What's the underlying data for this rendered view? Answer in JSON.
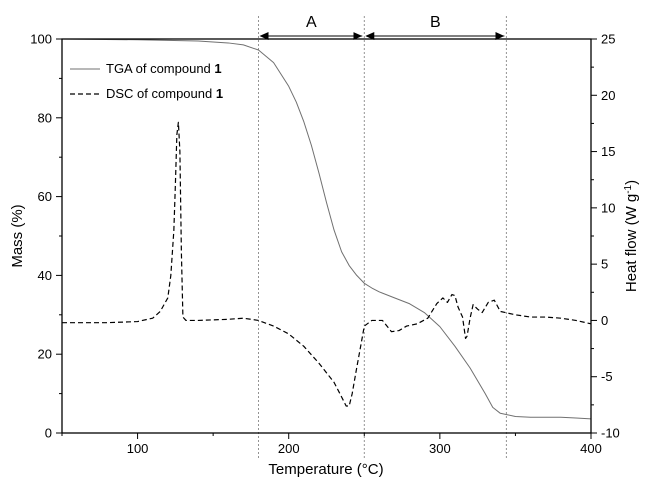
{
  "chart_data": {
    "type": "line",
    "xlabel": "Temperature (°C)",
    "ylabel": "Mass (%)",
    "y2label": "Heat flow (W g-1)",
    "xlim": [
      50,
      400
    ],
    "ylim": [
      0,
      100
    ],
    "y2lim": [
      -10,
      25
    ],
    "xticks": [
      "100",
      "200",
      "300",
      "400"
    ],
    "yticks": [
      "0",
      "20",
      "40",
      "60",
      "80",
      "100"
    ],
    "y2ticks": [
      "-10",
      "-5",
      "0",
      "5",
      "10",
      "15",
      "20",
      "25"
    ],
    "grid": false,
    "legend_position": "top-left",
    "regions": [
      {
        "label": "A",
        "x_start": 180,
        "x_end": 250
      },
      {
        "label": "B",
        "x_start": 250,
        "x_end": 344
      }
    ],
    "series": [
      {
        "name": "TGA of compound 1",
        "axis": "left",
        "style": "solid",
        "color": "#707070",
        "x": [
          50,
          100,
          140,
          160,
          170,
          180,
          190,
          200,
          205,
          210,
          215,
          220,
          225,
          230,
          235,
          240,
          245,
          250,
          255,
          260,
          270,
          280,
          290,
          300,
          310,
          320,
          330,
          335,
          340,
          350,
          360,
          370,
          380,
          390,
          400
        ],
        "y": [
          100,
          99.8,
          99.5,
          99.0,
          98.5,
          97.2,
          94.0,
          88.0,
          84.0,
          79.0,
          73.0,
          66.0,
          58.5,
          51.5,
          46.0,
          42.5,
          40.0,
          38.0,
          36.8,
          35.8,
          34.3,
          32.8,
          30.5,
          27.0,
          22.0,
          16.5,
          10.0,
          6.5,
          5.0,
          4.2,
          4.0,
          4.0,
          4.0,
          3.8,
          3.6
        ]
      },
      {
        "name": "DSC of compound 1",
        "axis": "right",
        "style": "dashed",
        "color": "#000000",
        "x": [
          50,
          80,
          100,
          110,
          115,
          120,
          122,
          124,
          125,
          126,
          127,
          128,
          129,
          130,
          132,
          140,
          160,
          170,
          180,
          190,
          200,
          210,
          220,
          230,
          235,
          238,
          240,
          242,
          245,
          248,
          250,
          255,
          262,
          268,
          273,
          278,
          285,
          292,
          298,
          302,
          305,
          308,
          310,
          312,
          315,
          317,
          318,
          320,
          322,
          325,
          328,
          332,
          336,
          340,
          350,
          360,
          370,
          380,
          390,
          400
        ],
        "y": [
          -0.2,
          -0.2,
          -0.1,
          0.2,
          0.8,
          2.0,
          4.0,
          8.0,
          12.0,
          16.5,
          17.6,
          15.0,
          6.0,
          0.3,
          0.0,
          0.0,
          0.1,
          0.2,
          0.0,
          -0.5,
          -1.2,
          -2.3,
          -3.8,
          -5.5,
          -6.8,
          -7.6,
          -7.6,
          -6.5,
          -4.2,
          -2.0,
          -0.5,
          0.0,
          0.0,
          -1.0,
          -0.9,
          -0.5,
          -0.3,
          0.2,
          1.5,
          2.0,
          1.6,
          2.3,
          2.2,
          1.2,
          0.3,
          -1.6,
          -1.4,
          0.2,
          1.4,
          1.0,
          0.7,
          1.6,
          1.8,
          0.8,
          0.5,
          0.3,
          0.3,
          0.2,
          0.0,
          -0.3
        ]
      }
    ]
  }
}
